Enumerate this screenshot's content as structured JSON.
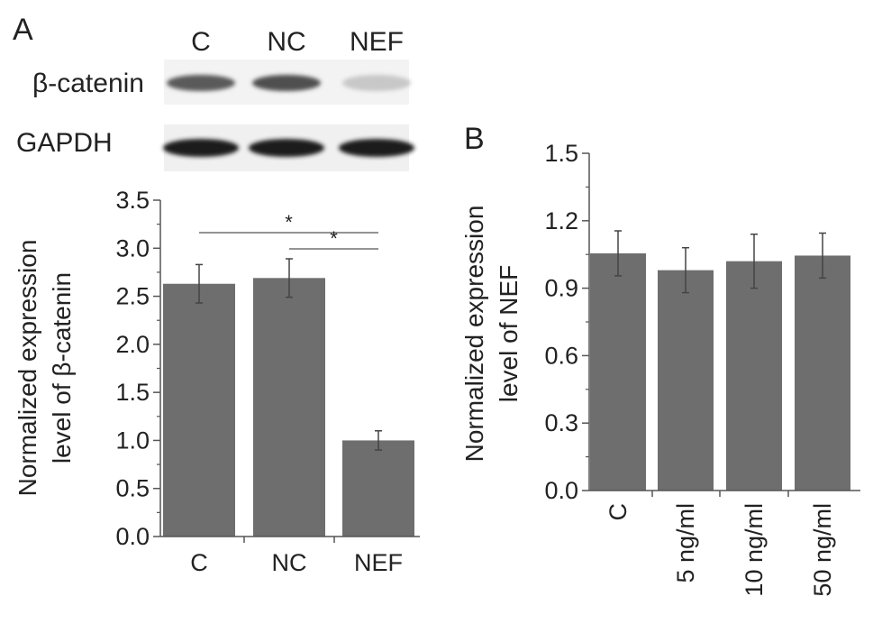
{
  "panels": {
    "a": {
      "label": "A"
    },
    "b": {
      "label": "B"
    }
  },
  "blot": {
    "lanes": [
      "C",
      "NC",
      "NEF"
    ],
    "rows": [
      {
        "name": "β-catenin",
        "intensity": [
          0.7,
          0.75,
          0.15
        ]
      },
      {
        "name": "GAPDH",
        "intensity": [
          1.0,
          1.0,
          1.0
        ]
      }
    ]
  },
  "chart_data": [
    {
      "panel": "A",
      "type": "bar",
      "categories": [
        "C",
        "NC",
        "NEF"
      ],
      "values": [
        2.63,
        2.69,
        1.0
      ],
      "errors": [
        0.2,
        0.2,
        0.1
      ],
      "ylabel_line1": "Normalized expression",
      "ylabel_line2": "level of β-catenin",
      "xlabel": "",
      "ylim": [
        0,
        3.5
      ],
      "yticks": [
        "0.0",
        "0.5",
        "1.0",
        "1.5",
        "2.0",
        "2.5",
        "3.0",
        "3.5"
      ],
      "bar_color": "#6e6e6e",
      "annotations": [
        {
          "from": "C",
          "to": "NEF",
          "text": "*"
        },
        {
          "from": "NC",
          "to": "NEF",
          "text": "*"
        }
      ]
    },
    {
      "panel": "B",
      "type": "bar",
      "categories": [
        "C",
        "5 ng/ml",
        "10 ng/ml",
        "50 ng/ml"
      ],
      "values": [
        1.055,
        0.98,
        1.02,
        1.045
      ],
      "errors": [
        0.1,
        0.1,
        0.12,
        0.1
      ],
      "ylabel_line1": "Normalized expression",
      "ylabel_line2": "level of NEF",
      "xlabel": "",
      "ylim": [
        0,
        1.5
      ],
      "yticks": [
        "0.0",
        "0.3",
        "0.6",
        "0.9",
        "1.2",
        "1.5"
      ],
      "bar_color": "#6e6e6e"
    }
  ]
}
